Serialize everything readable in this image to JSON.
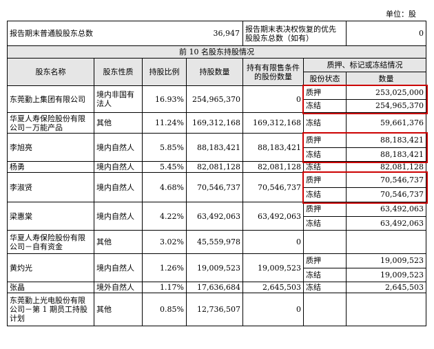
{
  "unit_label": "单位：股",
  "summary": {
    "common_holders_label": "报告期末普通股股东总数",
    "common_holders_value": "36,947",
    "preferred_holders_label_l1": "报告期末表决权恢复的优先",
    "preferred_holders_label_l2": "股股东总数（如有）",
    "preferred_holders_value": "0"
  },
  "section_title": "前 10 名股东持股情况",
  "headers": {
    "name": "股东名称",
    "nature": "股东性质",
    "ratio": "持股比例",
    "shares": "持股数量",
    "restricted_l1": "持有有限售条件",
    "restricted_l2": "的股份数量",
    "pledge_group": "质押、标记或冻结情况",
    "pledge_status": "股份状态",
    "pledge_qty": "数量"
  },
  "rows": [
    {
      "name_l1": "东莞勤上集团有限公司",
      "name_l2": "",
      "name_l3": "",
      "nature_l1": "境内非国有",
      "nature_l2": "法人",
      "ratio": "16.93%",
      "shares": "254,965,370",
      "restricted": "0",
      "s1": "质押",
      "q1": "253,025,000",
      "s2": "冻结",
      "q2": "254,965,370"
    },
    {
      "name_l1": "华夏人寿保险股份有限",
      "name_l2": "公司－万能产品",
      "name_l3": "",
      "nature_l1": "其他",
      "nature_l2": "",
      "ratio": "11.24%",
      "shares": "169,312,168",
      "restricted": "169,312,168",
      "s1": "冻结",
      "q1": "59,661,376",
      "s2": "",
      "q2": ""
    },
    {
      "name_l1": "李旭亮",
      "name_l2": "",
      "name_l3": "",
      "nature_l1": "境内自然人",
      "nature_l2": "",
      "ratio": "5.85%",
      "shares": "88,183,421",
      "restricted": "88,183,421",
      "s1": "质押",
      "q1": "88,183,421",
      "s2": "冻结",
      "q2": "88,183,421"
    },
    {
      "name_l1": "杨勇",
      "name_l2": "",
      "name_l3": "",
      "nature_l1": "境内自然人",
      "nature_l2": "",
      "ratio": "5.45%",
      "shares": "82,081,128",
      "restricted": "82,081,128",
      "s1": "冻结",
      "q1": "82,081,128",
      "s2": "",
      "q2": ""
    },
    {
      "name_l1": "李淑贤",
      "name_l2": "",
      "name_l3": "",
      "nature_l1": "境内自然人",
      "nature_l2": "",
      "ratio": "4.68%",
      "shares": "70,546,737",
      "restricted": "70,546,737",
      "s1": "质押",
      "q1": "70,546,737",
      "s2": "冻结",
      "q2": "70,546,737"
    },
    {
      "name_l1": "梁惠棠",
      "name_l2": "",
      "name_l3": "",
      "nature_l1": "境内自然人",
      "nature_l2": "",
      "ratio": "4.22%",
      "shares": "63,492,063",
      "restricted": "63,492,063",
      "s1": "质押",
      "q1": "63,492,063",
      "s2": "冻结",
      "q2": "63,492,063"
    },
    {
      "name_l1": "华夏人寿保险股份有限",
      "name_l2": "公司－自有资金",
      "name_l3": "",
      "nature_l1": "其他",
      "nature_l2": "",
      "ratio": "3.02%",
      "shares": "45,559,978",
      "restricted": "0",
      "s1": "",
      "q1": "",
      "s2": "",
      "q2": ""
    },
    {
      "name_l1": "黄灼光",
      "name_l2": "",
      "name_l3": "",
      "nature_l1": "境内自然人",
      "nature_l2": "",
      "ratio": "1.26%",
      "shares": "19,009,523",
      "restricted": "19,009,523",
      "s1": "质押",
      "q1": "19,009,523",
      "s2": "冻结",
      "q2": "19,009,523"
    },
    {
      "name_l1": "张晶",
      "name_l2": "",
      "name_l3": "",
      "nature_l1": "境外自然人",
      "nature_l2": "",
      "ratio": "1.17%",
      "shares": "17,636,684",
      "restricted": "2,645,503",
      "s1": "冻结",
      "q1": "2,645,503",
      "s2": "",
      "q2": ""
    },
    {
      "name_l1": "东莞勤上光电股份有限",
      "name_l2": "公司－第 1 期员工持股",
      "name_l3": "计划",
      "nature_l1": "其他",
      "nature_l2": "",
      "ratio": "0.85%",
      "shares": "12,736,507",
      "restricted": "0",
      "s1": "",
      "q1": "",
      "s2": "",
      "q2": ""
    }
  ]
}
